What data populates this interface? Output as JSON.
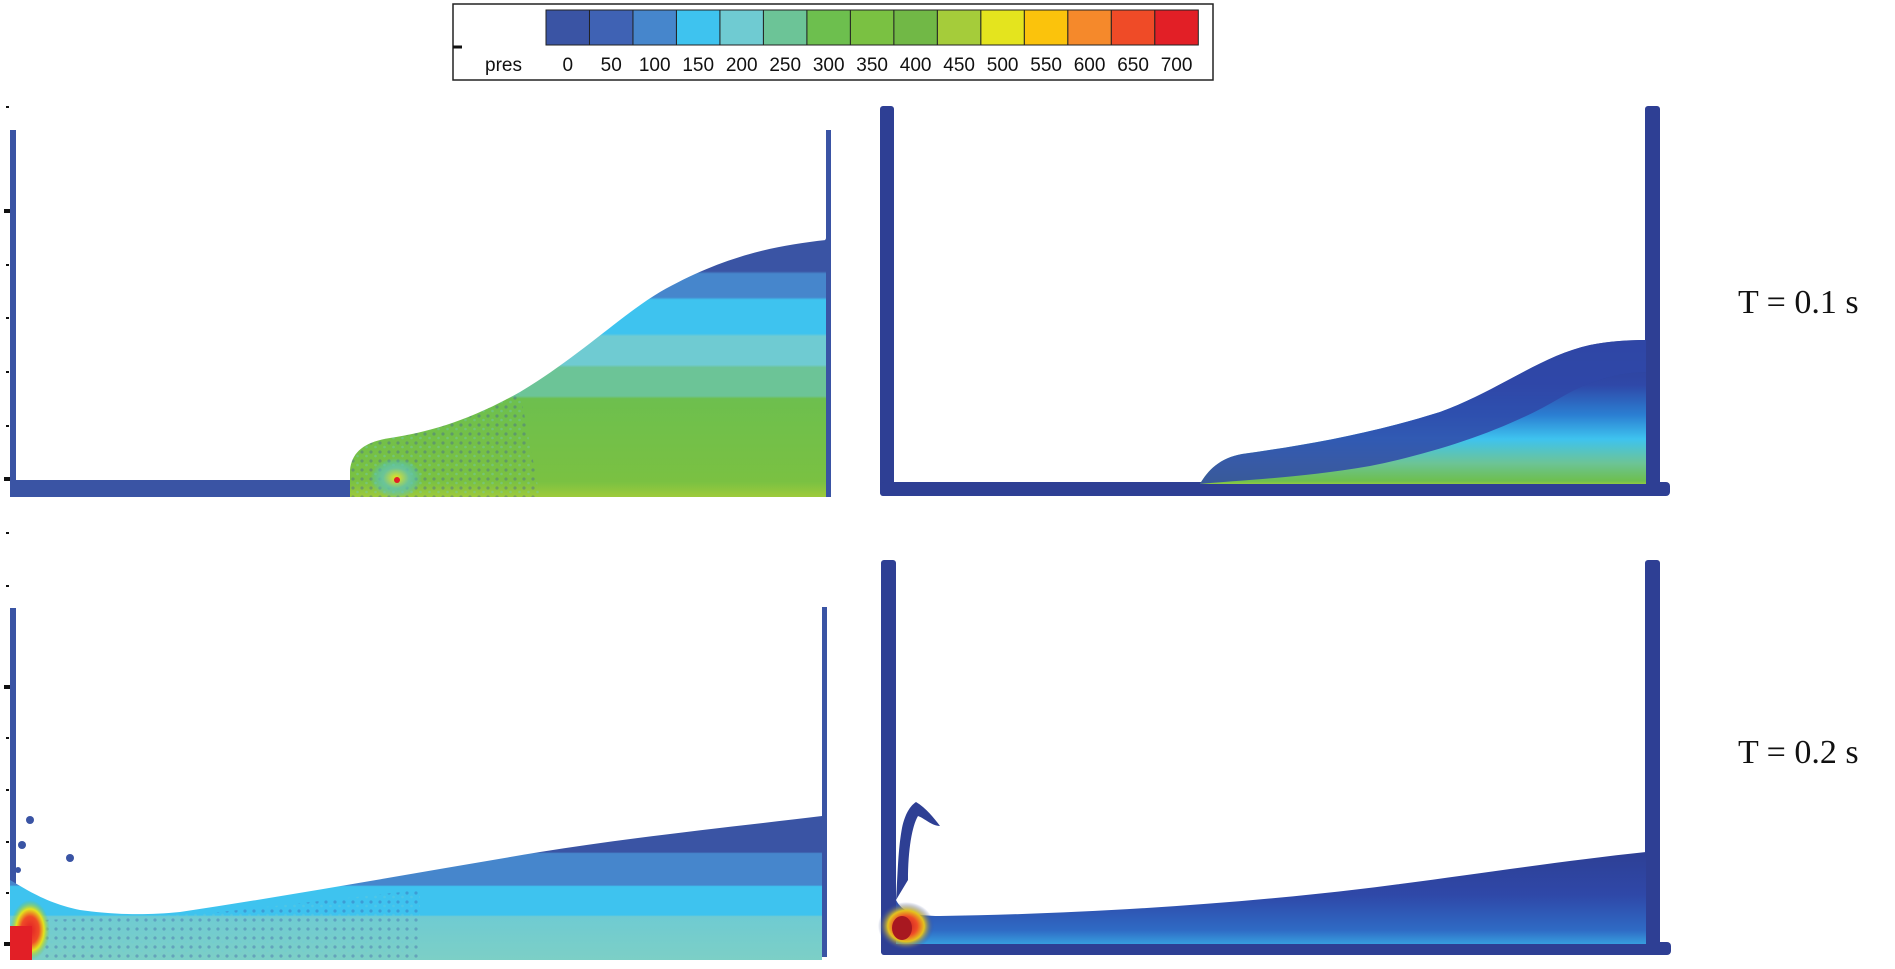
{
  "colorbar": {
    "variable": "pres",
    "ticks": [
      "0",
      "50",
      "100",
      "150",
      "200",
      "250",
      "300",
      "350",
      "400",
      "450",
      "500",
      "550",
      "600",
      "650",
      "700"
    ],
    "colors": [
      "#3a54a4",
      "#3f62b4",
      "#4686cc",
      "#3ec3ef",
      "#6fcbd2",
      "#6cc497",
      "#6dbf4e",
      "#7ac142",
      "#71b846",
      "#a5cc3a",
      "#e4e41e",
      "#fbc30c",
      "#f5892b",
      "#ef4b27",
      "#e21f26"
    ]
  },
  "panels": [
    {
      "time_label": "T = 0.1 s"
    },
    {
      "time_label": "T = 0.2 s"
    }
  ],
  "palette": {
    "wall": "#2e3f94",
    "fluid_low": "#3a54a4",
    "fluid_mid": "#3ec3ef",
    "fluid_high": "#6dbf4e",
    "peak": "#e21f26"
  }
}
